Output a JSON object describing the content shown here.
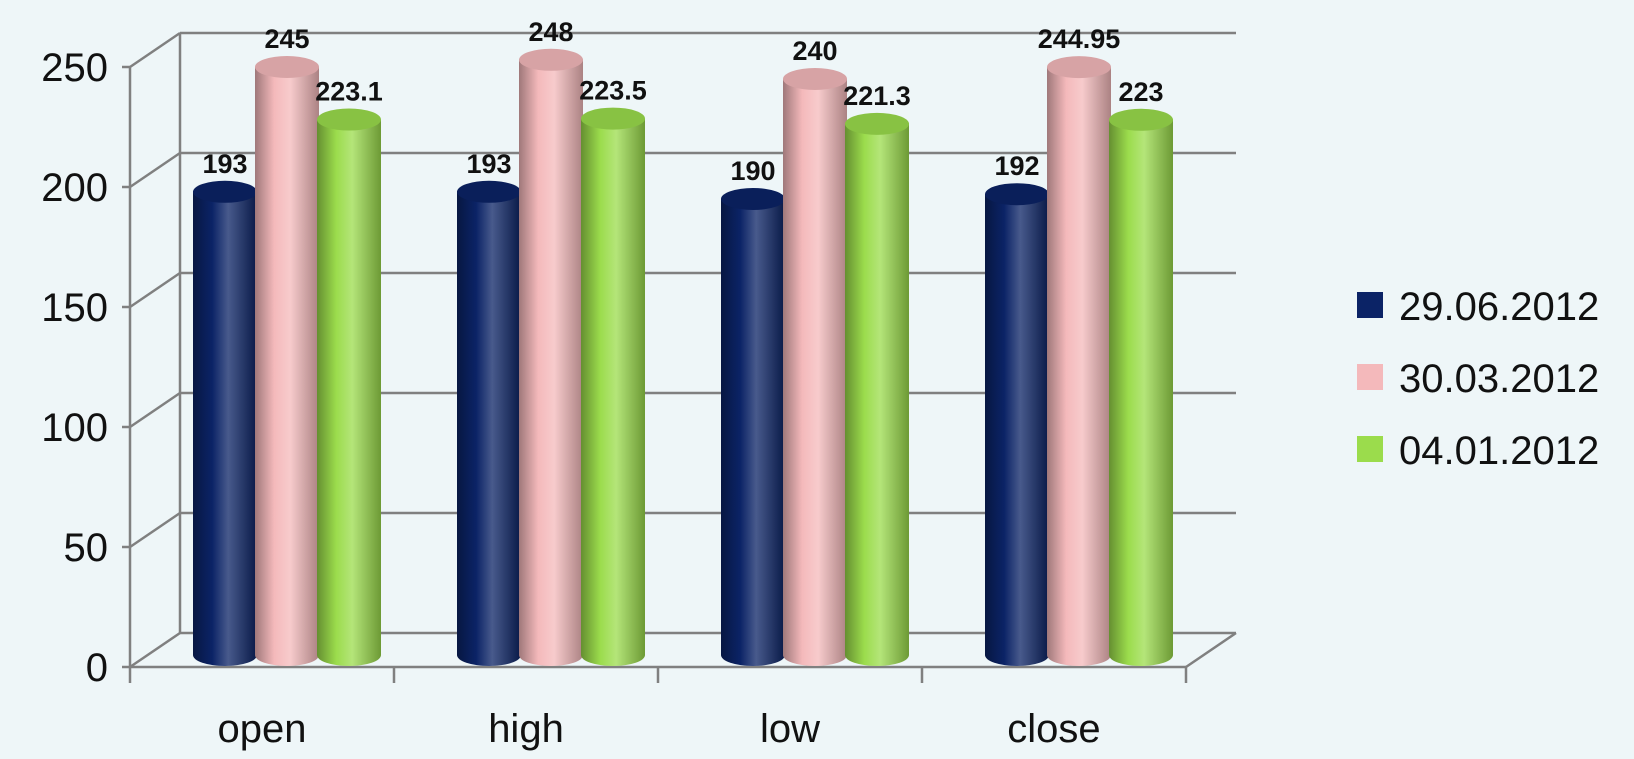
{
  "chart_data": {
    "type": "bar",
    "categories": [
      "open",
      "high",
      "low",
      "close"
    ],
    "series": [
      {
        "name": "29.06.2012",
        "color": "#0b2366",
        "values": [
          193,
          193,
          190,
          192
        ],
        "labels": [
          "193",
          "193",
          "190",
          "192"
        ]
      },
      {
        "name": "30.03.2012",
        "color": "#f4b9bb",
        "values": [
          245,
          248,
          240,
          244.95
        ],
        "labels": [
          "245",
          "248",
          "240",
          "244.95"
        ]
      },
      {
        "name": "04.01.2012",
        "color": "#9bdc4c",
        "values": [
          223.1,
          223.5,
          221.3,
          223
        ],
        "labels": [
          "223.1",
          "223.5",
          "221.3",
          "223"
        ]
      }
    ],
    "ylim": [
      0,
      250
    ],
    "yticks": [
      "0",
      "50",
      "100",
      "150",
      "200",
      "250"
    ],
    "grid": true,
    "legend_position": "right",
    "style": "3d-cylinder"
  }
}
